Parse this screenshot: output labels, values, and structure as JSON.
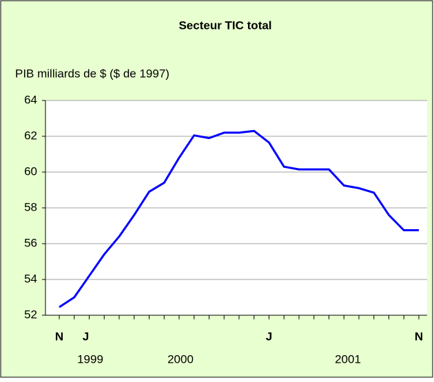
{
  "chart_data": {
    "type": "line",
    "title": "Secteur TIC total",
    "y_label": "PIB milliards de $ ($ de 1997)",
    "categories": [
      "N",
      null,
      "J",
      null,
      null,
      null,
      null,
      null,
      null,
      null,
      null,
      null,
      null,
      null,
      "J",
      null,
      null,
      null,
      null,
      null,
      null,
      null,
      null,
      null,
      "N"
    ],
    "year_labels": [
      "1999",
      "2000",
      "2001"
    ],
    "series": [
      {
        "name": "Secteur TIC total",
        "color": "#0000ff",
        "values": [
          52.45,
          53.0,
          54.2,
          55.4,
          56.4,
          57.6,
          58.9,
          59.4,
          60.8,
          62.05,
          61.9,
          62.2,
          62.2,
          62.3,
          61.65,
          60.3,
          60.15,
          60.15,
          60.15,
          59.25,
          59.1,
          58.85,
          57.6,
          56.75,
          56.75
        ]
      }
    ],
    "ylim": [
      52,
      64
    ],
    "yticks": [
      52,
      54,
      56,
      58,
      60,
      62,
      64
    ],
    "grid": true
  }
}
